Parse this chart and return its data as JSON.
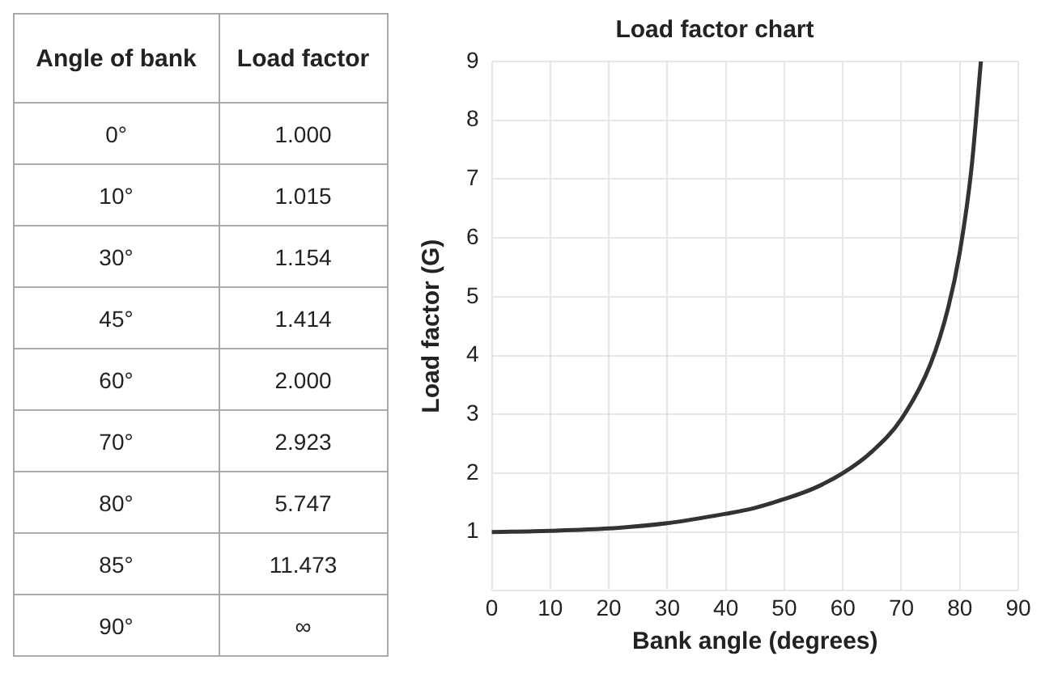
{
  "chart_data": [
    {
      "type": "other",
      "xlabel": "Angle of bank",
      "ylabel": "Load factor",
      "categories": [
        "0°",
        "10°",
        "30°",
        "45°",
        "60°",
        "70°",
        "80°",
        "85°",
        "90°"
      ],
      "value_labels": [
        "1.000",
        "1.015",
        "1.154",
        "1.414",
        "2.000",
        "2.923",
        "5.747",
        "11.473",
        "∞"
      ]
    },
    {
      "type": "line",
      "title": "Load factor chart",
      "xlabel": "Bank angle (degrees)",
      "ylabel": "Load factor (G)",
      "x": [
        0,
        10,
        20,
        30,
        40,
        45,
        50,
        55,
        60,
        65,
        70,
        75,
        78,
        80,
        82,
        83.6
      ],
      "series": [
        {
          "color": "#333333",
          "values": [
            1,
            1.02,
            1.06,
            1.15,
            1.31,
            1.41,
            1.56,
            1.74,
            2,
            2.37,
            2.92,
            3.86,
            4.81,
            5.76,
            7.19,
            9
          ]
        }
      ],
      "xlim": [
        0,
        90
      ],
      "xticks": [
        0,
        10,
        20,
        30,
        40,
        50,
        60,
        70,
        80,
        90
      ],
      "ylim": [
        0,
        9
      ],
      "yticks": [
        {
          "value": 0,
          "label": null
        },
        1,
        2,
        3,
        4,
        5,
        6,
        7,
        8,
        9
      ],
      "grid": true,
      "legend": false,
      "marker": "none",
      "line_style": "solid"
    }
  ]
}
